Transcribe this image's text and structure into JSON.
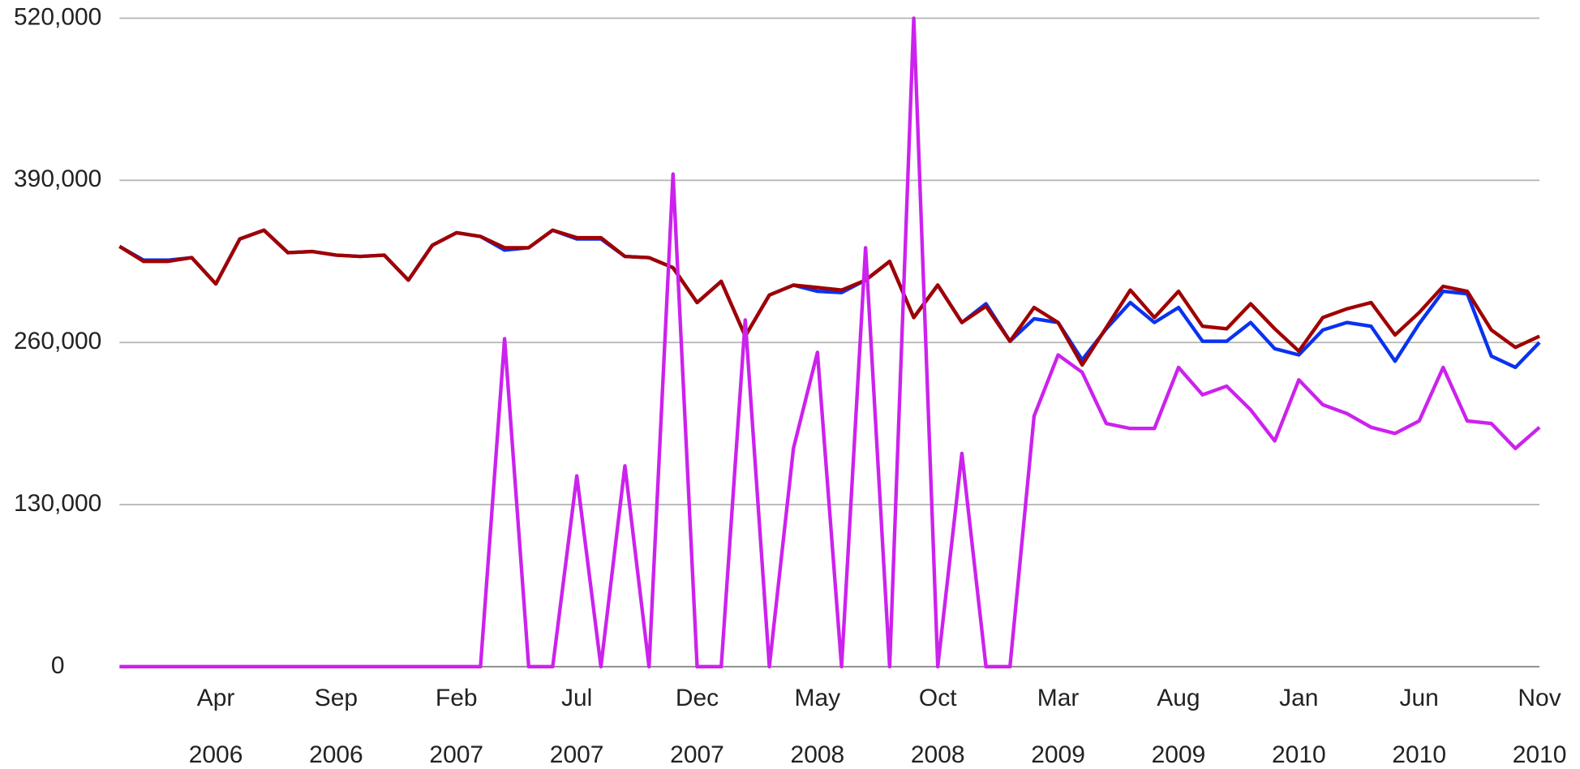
{
  "chart_data": {
    "type": "line",
    "categories": [
      null,
      null,
      null,
      null,
      "Apr 2006",
      null,
      null,
      null,
      null,
      "Sep 2006",
      null,
      null,
      null,
      null,
      "Feb 2007",
      null,
      null,
      null,
      null,
      "Jul 2007",
      null,
      null,
      null,
      null,
      "Dec 2007",
      null,
      null,
      null,
      null,
      "May 2008",
      null,
      null,
      null,
      null,
      "Oct 2008",
      null,
      null,
      null,
      null,
      "Mar 2009",
      null,
      null,
      null,
      null,
      "Aug 2009",
      null,
      null,
      null,
      null,
      "Jan 2010",
      null,
      null,
      null,
      null,
      "Jun 2010",
      null,
      null,
      null,
      null,
      "Nov 2010"
    ],
    "series": [
      {
        "color": "#0a32f0",
        "values": [
          337000,
          326000,
          326000,
          328000,
          307000,
          343000,
          350000,
          332000,
          333000,
          330000,
          329000,
          330000,
          310000,
          338000,
          348000,
          345000,
          334000,
          336000,
          350000,
          343000,
          343000,
          329000,
          328000,
          320000,
          292000,
          309000,
          265000,
          298000,
          306000,
          301000,
          300000,
          310000,
          325000,
          280000,
          306000,
          276000,
          291000,
          261000,
          279000,
          276000,
          246000,
          271000,
          292000,
          276000,
          288000,
          261000,
          261000,
          276000,
          255000,
          250000,
          270000,
          276000,
          273000,
          245000,
          275000,
          301000,
          299000,
          249000,
          240000,
          260000
        ]
      },
      {
        "color": "#a00000",
        "values": [
          337000,
          325000,
          325000,
          328000,
          307000,
          343000,
          350000,
          332000,
          333000,
          330000,
          329000,
          330000,
          310000,
          338000,
          348000,
          345000,
          336000,
          336000,
          350000,
          344000,
          344000,
          329000,
          328000,
          320000,
          292000,
          309000,
          265000,
          298000,
          306000,
          304000,
          302000,
          310000,
          325000,
          280000,
          306000,
          276000,
          289000,
          261000,
          288000,
          276000,
          242000,
          272000,
          302000,
          280000,
          301000,
          273000,
          271000,
          291000,
          271000,
          253000,
          280000,
          287000,
          292000,
          266000,
          284000,
          305000,
          301000,
          270000,
          256000,
          265000
        ]
      },
      {
        "color": "#cc22ee",
        "values": [
          0,
          0,
          0,
          0,
          0,
          0,
          0,
          0,
          0,
          0,
          0,
          0,
          0,
          0,
          0,
          0,
          263000,
          0,
          0,
          153000,
          0,
          161000,
          0,
          395000,
          0,
          0,
          278000,
          0,
          175000,
          252000,
          0,
          336000,
          0,
          520000,
          0,
          171000,
          0,
          0,
          201000,
          250000,
          236000,
          195000,
          191000,
          191000,
          240000,
          218000,
          225000,
          206000,
          181000,
          230000,
          210000,
          203000,
          192000,
          187000,
          197000,
          240000,
          197000,
          195000,
          175000,
          192000
        ]
      }
    ],
    "ylim": [
      0,
      520000
    ],
    "yticks": [
      {
        "value": 0,
        "label": "0"
      },
      {
        "value": 130000,
        "label": "130,000"
      },
      {
        "value": 260000,
        "label": "260,000"
      },
      {
        "value": 390000,
        "label": "390,000"
      },
      {
        "value": 520000,
        "label": "520,000"
      }
    ],
    "grid": true
  }
}
